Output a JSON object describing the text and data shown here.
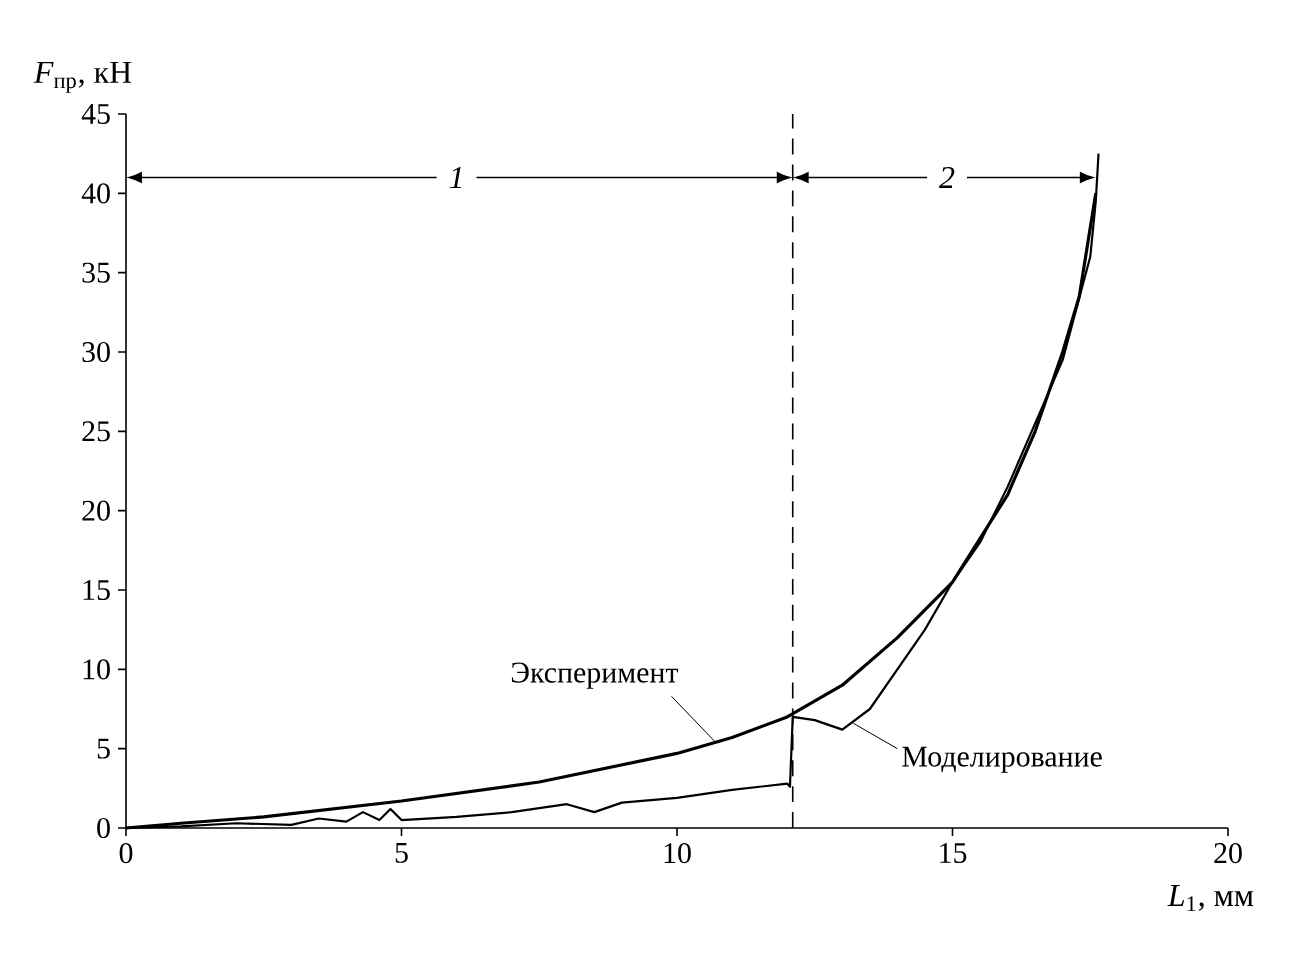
{
  "chart_data": {
    "type": "line",
    "xlabel": "*L*$_{1}$, мм",
    "ylabel": "*F*$_{пр}$, кН",
    "xlim": [
      0,
      20
    ],
    "xticks": [
      0,
      5,
      10,
      15,
      20
    ],
    "ylim": [
      0,
      45
    ],
    "yticks": [
      0,
      5,
      10,
      15,
      20,
      25,
      30,
      35,
      40,
      45
    ],
    "grid": false,
    "legend": "bottom right",
    "marker": "none",
    "series": [
      {
        "name": "Эксперимент",
        "color": "#000000",
        "line_style": "solid",
        "x": [
          0,
          1,
          2.5,
          5,
          7.5,
          10,
          11,
          12,
          13,
          14,
          15,
          16,
          16.5,
          17,
          17.3,
          17.6
        ],
        "values": [
          0,
          0.3,
          0.7,
          1.7,
          2.9,
          4.7,
          5.7,
          7.0,
          9.0,
          12.0,
          15.5,
          21.0,
          25.0,
          30.0,
          33.5,
          40.0
        ]
      },
      {
        "name": "Моделирование",
        "color": "#000000",
        "line_style": "solid",
        "x": [
          0,
          1,
          2,
          3,
          3.5,
          4,
          4.3,
          4.6,
          4.8,
          5.0,
          6,
          7,
          8,
          8.5,
          9,
          10,
          11,
          12,
          12.05,
          12.1,
          12.5,
          13,
          13.5,
          14,
          14.5,
          15,
          15.5,
          16,
          16.5,
          17,
          17.5,
          17.6,
          17.65
        ],
        "values": [
          0,
          0.1,
          0.3,
          0.2,
          0.6,
          0.4,
          1.0,
          0.5,
          1.2,
          0.5,
          0.7,
          1.0,
          1.5,
          1.0,
          1.6,
          1.9,
          2.4,
          2.8,
          2.6,
          7.0,
          6.8,
          6.2,
          7.5,
          10.0,
          12.5,
          15.5,
          18.0,
          21.5,
          25.5,
          29.5,
          36.0,
          39.5,
          42.5
        ]
      }
    ],
    "ref_lines": [
      {
        "axis": "x",
        "value": 12.1,
        "line_style": "dashed"
      }
    ],
    "annotations": [
      {
        "text": "*1*",
        "x": 6,
        "y": 41
      },
      {
        "text": "*2*",
        "x": 14.9,
        "y": 41
      }
    ]
  }
}
